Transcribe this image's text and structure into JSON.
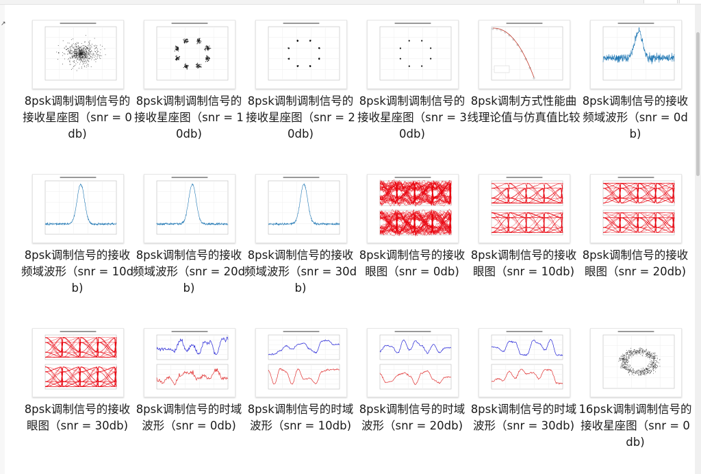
{
  "window": {
    "left_edge_glyph": "↗"
  },
  "files": [
    {
      "name": "8psk调制调制信号的接收星座图（snr = 0db)",
      "kind": "scatter-cloud",
      "color": "#222222"
    },
    {
      "name": "8psk调制调制信号的接收星座图（snr = 10db)",
      "kind": "constellation-ring",
      "color": "#222222"
    },
    {
      "name": "8psk调制调制信号的接收星座图（snr = 20db)",
      "kind": "constellation-dots",
      "color": "#111111"
    },
    {
      "name": "8psk调制调制信号的接收星座图（snr = 30db)",
      "kind": "constellation-points",
      "color": "#111111"
    },
    {
      "name": "8psk调制方式性能曲线理论值与仿真值比较",
      "kind": "ber-curve",
      "color": "#c0392b"
    },
    {
      "name": "8psk调制信号的接收频域波形（snr = 0db)",
      "kind": "spectrum-noisy",
      "color": "#1f77b4"
    },
    {
      "name": "8psk调制信号的接收频域波形（snr = 10db)",
      "kind": "spectrum",
      "color": "#1f77b4"
    },
    {
      "name": "8psk调制信号的接收频域波形（snr = 20db)",
      "kind": "spectrum",
      "color": "#1f77b4"
    },
    {
      "name": "8psk调制信号的接收频域波形（snr = 30db)",
      "kind": "spectrum",
      "color": "#1f77b4"
    },
    {
      "name": "8psk调制信号的接收眼图（snr = 0db)",
      "kind": "eye-dense",
      "color": "#e8000b"
    },
    {
      "name": "8psk调制信号的接收眼图（snr = 10db)",
      "kind": "eye",
      "color": "#e8000b"
    },
    {
      "name": "8psk调制信号的接收眼图（snr = 20db)",
      "kind": "eye",
      "color": "#e8000b"
    },
    {
      "name": "8psk调制信号的接收眼图（snr = 30db)",
      "kind": "eye",
      "color": "#e8000b"
    },
    {
      "name": "8psk调制信号的时域波形（snr = 0db)",
      "kind": "time-noisy",
      "color": "#2323d6"
    },
    {
      "name": "8psk调制信号的时域波形（snr = 10db)",
      "kind": "time",
      "color": "#2323d6"
    },
    {
      "name": "8psk调制信号的时域波形（snr = 20db)",
      "kind": "time",
      "color": "#2323d6"
    },
    {
      "name": "8psk调制信号的时域波形（snr = 30db)",
      "kind": "time",
      "color": "#2323d6"
    },
    {
      "name": "16psk调制调制信号的接收星座图（snr = 0db)",
      "kind": "scatter-ring",
      "color": "#333333"
    }
  ]
}
